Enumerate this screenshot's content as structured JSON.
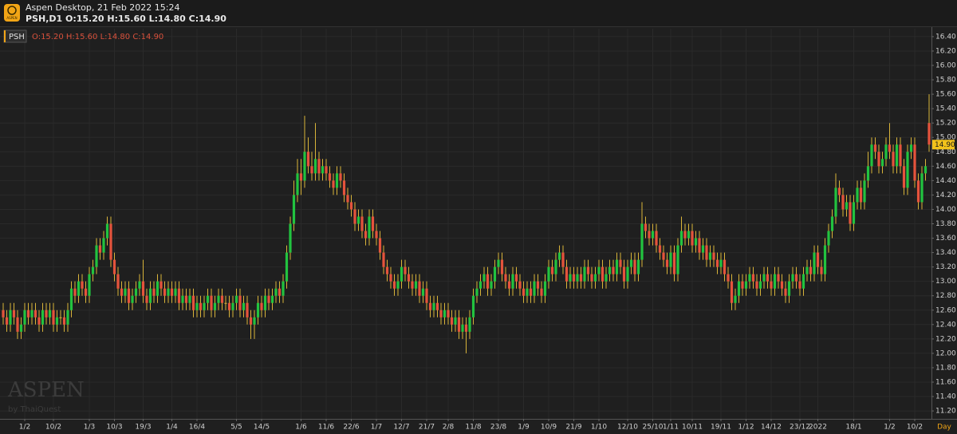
{
  "window": {
    "title": "Aspen Desktop, 21 Feb 2022 15:24",
    "symbol_info": "PSH,D1 O:15.20 H:15.60 L:14.80 C:14.90",
    "logo_text": "ASPEN"
  },
  "chart_data": {
    "type": "candlestick",
    "legend_symbol": "PSH",
    "legend_ohlc": "O:15.20 H:15.60 L:14.80 C:14.90",
    "watermark": "ASPEN",
    "watermark_sub": "by ThaiQuest",
    "period_label": "Day",
    "up_color": "#22c33f",
    "down_color": "#e5533c",
    "wick_color": "#d9b43a",
    "flat_color": "#d9b43a",
    "grid": true,
    "last_price": {
      "value": 14.9,
      "label": "14.90"
    },
    "ylim": [
      11.09,
      16.51
    ],
    "yticks": [
      {
        "value": 11.2,
        "label": "11.20"
      },
      {
        "value": 11.4,
        "label": "11.40"
      },
      {
        "value": 11.6,
        "label": "11.60"
      },
      {
        "value": 11.8,
        "label": "11.80"
      },
      {
        "value": 12.0,
        "label": "12.00"
      },
      {
        "value": 12.2,
        "label": "12.20"
      },
      {
        "value": 12.4,
        "label": "12.40"
      },
      {
        "value": 12.6,
        "label": "12.60"
      },
      {
        "value": 12.8,
        "label": "12.80"
      },
      {
        "value": 13.0,
        "label": "13.00"
      },
      {
        "value": 13.2,
        "label": "13.20"
      },
      {
        "value": 13.4,
        "label": "13.40"
      },
      {
        "value": 13.6,
        "label": "13.60"
      },
      {
        "value": 13.8,
        "label": "13.80"
      },
      {
        "value": 14.0,
        "label": "14.00"
      },
      {
        "value": 14.2,
        "label": "14.20"
      },
      {
        "value": 14.4,
        "label": "14.40"
      },
      {
        "value": 14.6,
        "label": "14.60"
      },
      {
        "value": 14.8,
        "label": "14.80"
      },
      {
        "value": 15.0,
        "label": "15.00"
      },
      {
        "value": 15.2,
        "label": "15.20"
      },
      {
        "value": 15.4,
        "label": "15.40"
      },
      {
        "value": 15.6,
        "label": "15.60"
      },
      {
        "value": 15.8,
        "label": "15.80"
      },
      {
        "value": 16.0,
        "label": "16.00"
      },
      {
        "value": 16.2,
        "label": "16.20"
      },
      {
        "value": 16.4,
        "label": "16.40"
      }
    ],
    "categories": [
      null,
      null,
      null,
      null,
      null,
      null,
      "1/2",
      null,
      null,
      null,
      null,
      null,
      null,
      null,
      "10/2",
      null,
      null,
      null,
      null,
      null,
      null,
      null,
      null,
      null,
      "1/3",
      null,
      null,
      null,
      null,
      null,
      null,
      "10/3",
      null,
      null,
      null,
      null,
      null,
      null,
      null,
      "19/3",
      null,
      null,
      null,
      null,
      null,
      null,
      null,
      "1/4",
      null,
      null,
      null,
      null,
      null,
      null,
      "16/4",
      null,
      null,
      null,
      null,
      null,
      null,
      null,
      null,
      null,
      null,
      "5/5",
      null,
      null,
      null,
      null,
      null,
      null,
      "14/5",
      null,
      null,
      null,
      null,
      null,
      null,
      null,
      null,
      null,
      null,
      "1/6",
      null,
      null,
      null,
      null,
      null,
      null,
      "11/6",
      null,
      null,
      null,
      null,
      null,
      null,
      "22/6",
      null,
      null,
      null,
      null,
      null,
      null,
      "1/7",
      null,
      null,
      null,
      null,
      null,
      null,
      "12/7",
      null,
      null,
      null,
      null,
      null,
      null,
      "21/7",
      null,
      null,
      null,
      null,
      null,
      "2/8",
      null,
      null,
      null,
      null,
      null,
      null,
      "11/8",
      null,
      null,
      null,
      null,
      null,
      null,
      "23/8",
      null,
      null,
      null,
      null,
      null,
      null,
      "1/9",
      null,
      null,
      null,
      null,
      null,
      null,
      "10/9",
      null,
      null,
      null,
      null,
      null,
      null,
      "21/9",
      null,
      null,
      null,
      null,
      null,
      null,
      "1/10",
      null,
      null,
      null,
      null,
      null,
      null,
      null,
      "12/10",
      null,
      null,
      null,
      null,
      null,
      null,
      "25/10",
      null,
      null,
      null,
      null,
      "1/11",
      null,
      null,
      null,
      null,
      null,
      "10/11",
      null,
      null,
      null,
      null,
      null,
      null,
      null,
      "19/11",
      null,
      null,
      null,
      null,
      null,
      null,
      "1/12",
      null,
      null,
      null,
      null,
      null,
      null,
      "14/12",
      null,
      null,
      null,
      null,
      null,
      null,
      null,
      "23/12",
      null,
      null,
      null,
      null,
      "2022",
      null,
      null,
      null,
      null,
      null,
      null,
      null,
      null,
      null,
      "18/1",
      null,
      null,
      null,
      null,
      null,
      null,
      null,
      null,
      null,
      "1/2",
      null,
      null,
      null,
      null,
      null,
      null,
      "10/2",
      null,
      null,
      null,
      null
    ],
    "open": [
      12.6,
      12.5,
      12.4,
      12.6,
      12.5,
      12.3,
      12.4,
      12.6,
      12.5,
      12.6,
      12.5,
      12.4,
      12.6,
      12.5,
      12.6,
      12.4,
      12.5,
      12.5,
      12.4,
      12.6,
      12.9,
      12.8,
      13.0,
      12.9,
      12.8,
      13.1,
      13.2,
      13.5,
      13.4,
      13.6,
      13.8,
      13.3,
      13.1,
      12.9,
      12.8,
      12.9,
      12.7,
      12.8,
      12.9,
      13.0,
      12.8,
      12.7,
      12.9,
      12.8,
      13.0,
      12.9,
      12.8,
      12.9,
      12.8,
      12.9,
      12.7,
      12.8,
      12.7,
      12.8,
      12.6,
      12.7,
      12.6,
      12.7,
      12.8,
      12.6,
      12.7,
      12.8,
      12.7,
      12.7,
      12.6,
      12.7,
      12.8,
      12.6,
      12.7,
      12.5,
      12.4,
      12.5,
      12.7,
      12.6,
      12.8,
      12.7,
      12.8,
      12.9,
      12.8,
      13.0,
      13.4,
      13.8,
      14.2,
      14.5,
      14.4,
      14.8,
      14.6,
      14.5,
      14.7,
      14.5,
      14.6,
      14.5,
      14.4,
      14.3,
      14.5,
      14.4,
      14.2,
      14.1,
      14.0,
      13.8,
      13.9,
      13.7,
      13.6,
      13.9,
      13.7,
      13.6,
      13.4,
      13.2,
      13.1,
      13.0,
      12.9,
      13.0,
      13.2,
      13.1,
      13.0,
      12.9,
      13.0,
      12.8,
      12.9,
      12.7,
      12.6,
      12.7,
      12.6,
      12.5,
      12.6,
      12.5,
      12.4,
      12.5,
      12.3,
      12.4,
      12.3,
      12.5,
      12.8,
      12.9,
      13.0,
      13.1,
      12.9,
      13.0,
      13.2,
      13.3,
      13.1,
      13.0,
      12.9,
      13.1,
      13.0,
      12.9,
      12.8,
      12.9,
      12.8,
      13.0,
      12.9,
      12.8,
      13.0,
      13.2,
      13.1,
      13.3,
      13.4,
      13.2,
      13.0,
      13.1,
      13.0,
      13.1,
      13.0,
      13.2,
      13.1,
      13.0,
      13.1,
      13.2,
      13.0,
      13.1,
      13.2,
      13.1,
      13.3,
      13.2,
      13.0,
      13.2,
      13.3,
      13.1,
      13.3,
      13.8,
      13.7,
      13.6,
      13.7,
      13.5,
      13.4,
      13.3,
      13.2,
      13.4,
      13.1,
      13.5,
      13.7,
      13.6,
      13.7,
      13.5,
      13.6,
      13.4,
      13.5,
      13.3,
      13.4,
      13.3,
      13.2,
      13.3,
      13.1,
      13.0,
      12.7,
      12.8,
      13.0,
      12.9,
      13.0,
      13.1,
      13.0,
      12.9,
      13.0,
      13.1,
      13.0,
      12.9,
      13.1,
      13.0,
      12.9,
      12.8,
      13.0,
      13.1,
      13.0,
      12.9,
      13.1,
      13.2,
      13.1,
      13.4,
      13.2,
      13.1,
      13.5,
      13.7,
      13.9,
      14.3,
      14.2,
      14.0,
      14.1,
      13.8,
      14.1,
      14.3,
      14.1,
      14.4,
      14.6,
      14.9,
      14.8,
      14.6,
      14.7,
      14.9,
      14.8,
      14.6,
      14.9,
      14.6,
      14.3,
      14.8,
      14.9,
      14.4,
      14.1,
      14.5,
      15.2
    ],
    "high": [
      12.7,
      12.6,
      12.7,
      12.7,
      12.6,
      12.5,
      12.7,
      12.7,
      12.7,
      12.7,
      12.6,
      12.7,
      12.7,
      12.7,
      12.7,
      12.6,
      12.6,
      12.6,
      12.7,
      13.0,
      13.0,
      13.1,
      13.1,
      13.0,
      13.2,
      13.3,
      13.6,
      13.6,
      13.7,
      13.9,
      13.9,
      13.4,
      13.2,
      13.0,
      13.0,
      13.0,
      12.9,
      13.0,
      13.1,
      13.3,
      12.9,
      13.0,
      13.0,
      13.1,
      13.1,
      13.0,
      13.0,
      13.0,
      13.0,
      13.0,
      12.9,
      12.9,
      12.9,
      12.9,
      12.8,
      12.8,
      12.8,
      12.9,
      12.9,
      12.8,
      12.9,
      12.9,
      12.8,
      12.8,
      12.8,
      12.9,
      12.9,
      12.8,
      12.8,
      12.6,
      12.6,
      12.8,
      12.8,
      12.9,
      12.9,
      12.9,
      13.0,
      13.0,
      13.1,
      13.5,
      13.9,
      14.4,
      14.7,
      14.7,
      15.3,
      15.0,
      14.8,
      15.2,
      14.8,
      14.7,
      14.7,
      14.6,
      14.5,
      14.6,
      14.6,
      14.5,
      14.3,
      14.2,
      14.1,
      14.0,
      14.0,
      13.8,
      14.0,
      14.0,
      13.8,
      13.7,
      13.5,
      13.3,
      13.2,
      13.1,
      13.1,
      13.3,
      13.3,
      13.2,
      13.1,
      13.1,
      13.1,
      13.0,
      13.0,
      12.8,
      12.8,
      12.8,
      12.7,
      12.7,
      12.7,
      12.6,
      12.6,
      12.6,
      12.5,
      12.5,
      12.6,
      12.9,
      13.0,
      13.1,
      13.2,
      13.2,
      13.1,
      13.3,
      13.4,
      13.4,
      13.2,
      13.1,
      13.2,
      13.2,
      13.1,
      13.0,
      13.0,
      13.0,
      13.1,
      13.1,
      13.0,
      13.1,
      13.3,
      13.3,
      13.4,
      13.5,
      13.5,
      13.3,
      13.2,
      13.2,
      13.2,
      13.2,
      13.3,
      13.3,
      13.2,
      13.2,
      13.3,
      13.3,
      13.2,
      13.3,
      13.3,
      13.4,
      13.4,
      13.3,
      13.3,
      13.4,
      13.4,
      13.4,
      14.1,
      13.9,
      13.8,
      13.8,
      13.8,
      13.6,
      13.5,
      13.4,
      13.5,
      13.5,
      13.6,
      13.9,
      13.8,
      13.8,
      13.8,
      13.7,
      13.7,
      13.6,
      13.6,
      13.5,
      13.5,
      13.4,
      13.4,
      13.4,
      13.2,
      13.1,
      12.9,
      13.1,
      13.1,
      13.1,
      13.2,
      13.2,
      13.1,
      13.1,
      13.2,
      13.2,
      13.1,
      13.2,
      13.2,
      13.1,
      13.0,
      13.1,
      13.2,
      13.2,
      13.1,
      13.2,
      13.3,
      13.3,
      13.5,
      13.5,
      13.3,
      13.6,
      13.8,
      14.0,
      14.5,
      14.4,
      14.3,
      14.2,
      14.2,
      14.2,
      14.4,
      14.4,
      14.5,
      14.8,
      15.0,
      15.0,
      14.9,
      14.8,
      15.0,
      15.2,
      14.9,
      15.0,
      15.0,
      14.7,
      14.9,
      15.0,
      15.0,
      14.5,
      14.6,
      14.7,
      15.6
    ],
    "low": [
      12.4,
      12.3,
      12.3,
      12.4,
      12.2,
      12.2,
      12.3,
      12.4,
      12.4,
      12.4,
      12.3,
      12.3,
      12.4,
      12.4,
      12.3,
      12.3,
      12.4,
      12.3,
      12.3,
      12.5,
      12.7,
      12.7,
      12.8,
      12.7,
      12.7,
      13.0,
      13.1,
      13.3,
      13.3,
      13.5,
      13.2,
      13.0,
      12.8,
      12.7,
      12.7,
      12.6,
      12.6,
      12.7,
      12.8,
      12.7,
      12.6,
      12.6,
      12.7,
      12.7,
      12.8,
      12.7,
      12.7,
      12.7,
      12.7,
      12.6,
      12.6,
      12.6,
      12.6,
      12.5,
      12.5,
      12.5,
      12.5,
      12.6,
      12.5,
      12.5,
      12.6,
      12.6,
      12.6,
      12.5,
      12.5,
      12.6,
      12.5,
      12.5,
      12.4,
      12.2,
      12.2,
      12.4,
      12.5,
      12.5,
      12.6,
      12.6,
      12.7,
      12.7,
      12.7,
      12.9,
      13.3,
      13.7,
      14.1,
      14.2,
      14.3,
      14.5,
      14.4,
      14.4,
      14.4,
      14.4,
      14.4,
      14.3,
      14.2,
      14.2,
      14.3,
      14.1,
      14.0,
      13.9,
      13.7,
      13.7,
      13.6,
      13.5,
      13.5,
      13.6,
      13.5,
      13.3,
      13.1,
      13.0,
      12.9,
      12.8,
      12.8,
      12.9,
      13.0,
      12.9,
      12.8,
      12.8,
      12.7,
      12.7,
      12.6,
      12.5,
      12.5,
      12.5,
      12.4,
      12.4,
      12.4,
      12.3,
      12.3,
      12.2,
      12.2,
      12.0,
      12.2,
      12.4,
      12.7,
      12.8,
      12.9,
      12.8,
      12.8,
      12.9,
      13.1,
      13.0,
      12.9,
      12.8,
      12.8,
      12.9,
      12.8,
      12.7,
      12.7,
      12.7,
      12.7,
      12.8,
      12.7,
      12.7,
      12.9,
      13.0,
      13.0,
      13.2,
      13.1,
      12.9,
      12.9,
      12.9,
      12.9,
      12.9,
      12.9,
      13.0,
      12.9,
      12.9,
      13.0,
      12.9,
      12.9,
      13.0,
      13.0,
      13.0,
      13.1,
      12.9,
      12.9,
      13.1,
      13.0,
      13.0,
      13.2,
      13.6,
      13.5,
      13.5,
      13.4,
      13.3,
      13.2,
      13.1,
      13.1,
      13.0,
      13.0,
      13.4,
      13.5,
      13.5,
      13.4,
      13.4,
      13.3,
      13.3,
      13.2,
      13.2,
      13.2,
      13.1,
      13.1,
      13.0,
      12.9,
      12.6,
      12.6,
      12.7,
      12.8,
      12.8,
      12.9,
      12.9,
      12.8,
      12.8,
      12.9,
      12.9,
      12.8,
      12.8,
      12.9,
      12.8,
      12.7,
      12.7,
      12.9,
      12.9,
      12.8,
      12.8,
      13.0,
      13.0,
      13.0,
      13.1,
      13.0,
      13.0,
      13.4,
      13.6,
      13.8,
      14.1,
      13.9,
      13.9,
      13.7,
      13.7,
      14.0,
      14.0,
      14.0,
      14.3,
      14.5,
      14.7,
      14.5,
      14.5,
      14.6,
      14.7,
      14.5,
      14.5,
      14.5,
      14.2,
      14.2,
      14.7,
      14.3,
      14.0,
      14.0,
      14.4,
      14.8
    ],
    "close": [
      12.5,
      12.4,
      12.6,
      12.5,
      12.3,
      12.4,
      12.6,
      12.5,
      12.6,
      12.5,
      12.4,
      12.6,
      12.5,
      12.6,
      12.4,
      12.5,
      12.5,
      12.4,
      12.6,
      12.9,
      12.8,
      13.0,
      12.9,
      12.8,
      13.1,
      13.2,
      13.5,
      13.4,
      13.6,
      13.8,
      13.3,
      13.1,
      12.9,
      12.8,
      12.9,
      12.7,
      12.8,
      12.9,
      13.0,
      12.8,
      12.7,
      12.9,
      12.8,
      13.0,
      12.9,
      12.8,
      12.9,
      12.8,
      12.9,
      12.7,
      12.8,
      12.7,
      12.8,
      12.6,
      12.7,
      12.6,
      12.7,
      12.8,
      12.6,
      12.7,
      12.8,
      12.7,
      12.7,
      12.6,
      12.7,
      12.8,
      12.6,
      12.7,
      12.5,
      12.4,
      12.5,
      12.7,
      12.6,
      12.8,
      12.7,
      12.8,
      12.9,
      12.8,
      13.0,
      13.4,
      13.8,
      14.2,
      14.5,
      14.4,
      14.8,
      14.6,
      14.5,
      14.7,
      14.5,
      14.6,
      14.5,
      14.4,
      14.3,
      14.5,
      14.4,
      14.2,
      14.1,
      14.0,
      13.8,
      13.9,
      13.7,
      13.6,
      13.9,
      13.7,
      13.6,
      13.4,
      13.2,
      13.1,
      13.0,
      12.9,
      13.0,
      13.2,
      13.1,
      13.0,
      12.9,
      13.0,
      12.8,
      12.9,
      12.7,
      12.6,
      12.7,
      12.6,
      12.5,
      12.6,
      12.5,
      12.4,
      12.5,
      12.3,
      12.4,
      12.3,
      12.5,
      12.8,
      12.9,
      13.0,
      13.1,
      12.9,
      13.0,
      13.2,
      13.3,
      13.1,
      13.0,
      12.9,
      13.1,
      13.0,
      12.9,
      12.8,
      12.9,
      12.8,
      13.0,
      12.9,
      12.8,
      13.0,
      13.2,
      13.1,
      13.3,
      13.4,
      13.2,
      13.0,
      13.1,
      13.0,
      13.1,
      13.0,
      13.2,
      13.1,
      13.0,
      13.1,
      13.2,
      13.0,
      13.1,
      13.2,
      13.1,
      13.3,
      13.2,
      13.0,
      13.2,
      13.3,
      13.1,
      13.3,
      13.8,
      13.7,
      13.6,
      13.7,
      13.5,
      13.4,
      13.3,
      13.2,
      13.4,
      13.1,
      13.5,
      13.7,
      13.6,
      13.7,
      13.5,
      13.6,
      13.4,
      13.5,
      13.3,
      13.4,
      13.3,
      13.2,
      13.3,
      13.1,
      13.0,
      12.7,
      12.8,
      13.0,
      12.9,
      13.0,
      13.1,
      13.0,
      12.9,
      13.0,
      13.1,
      13.0,
      12.9,
      13.1,
      13.0,
      12.9,
      12.8,
      13.0,
      13.1,
      13.0,
      12.9,
      13.1,
      13.2,
      13.1,
      13.4,
      13.2,
      13.1,
      13.5,
      13.7,
      13.9,
      14.3,
      14.2,
      14.0,
      14.1,
      13.8,
      14.1,
      14.3,
      14.1,
      14.4,
      14.6,
      14.9,
      14.8,
      14.6,
      14.7,
      14.9,
      14.8,
      14.6,
      14.9,
      14.6,
      14.3,
      14.8,
      14.9,
      14.4,
      14.1,
      14.5,
      14.6,
      14.9
    ]
  }
}
